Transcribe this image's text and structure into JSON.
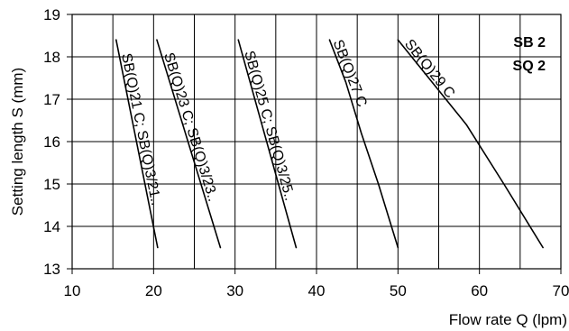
{
  "chart_data": {
    "type": "line",
    "title": "",
    "xlabel": "Flow rate Q (lpm)",
    "ylabel": "Setting length S (mm)",
    "xlim": [
      10,
      70
    ],
    "ylim": [
      13,
      19
    ],
    "x_ticks": [
      "10",
      "20",
      "30",
      "40",
      "50",
      "60",
      "70"
    ],
    "y_ticks": [
      "13",
      "14",
      "15",
      "16",
      "17",
      "18",
      "19"
    ],
    "x_minor_grid_step": 5,
    "y_grid_step": 1,
    "grid": true,
    "annotation_lines": [
      "SB 2",
      "SQ 2"
    ],
    "series": [
      {
        "name": "SB(Q)21 C; SB(Q)3/21..",
        "points": [
          [
            15.4,
            18.4
          ],
          [
            20.5,
            13.5
          ]
        ]
      },
      {
        "name": "SB(Q)23 C; SB(Q)3/23..",
        "points": [
          [
            20.4,
            18.4
          ],
          [
            28.2,
            13.5
          ]
        ]
      },
      {
        "name": "SB(Q)25 C; SB(Q)3/25..",
        "points": [
          [
            30.4,
            18.4
          ],
          [
            37.5,
            13.5
          ]
        ]
      },
      {
        "name": "SB(Q)27 C",
        "points": [
          [
            41.6,
            18.4
          ],
          [
            43.6,
            17.4
          ],
          [
            45.5,
            16.2
          ],
          [
            47.6,
            15.0
          ],
          [
            50.0,
            13.5
          ]
        ]
      },
      {
        "name": "SB(Q)29 C",
        "points": [
          [
            50.0,
            18.4
          ],
          [
            58.4,
            16.4
          ],
          [
            63.0,
            15.0
          ],
          [
            67.8,
            13.5
          ]
        ]
      }
    ]
  }
}
